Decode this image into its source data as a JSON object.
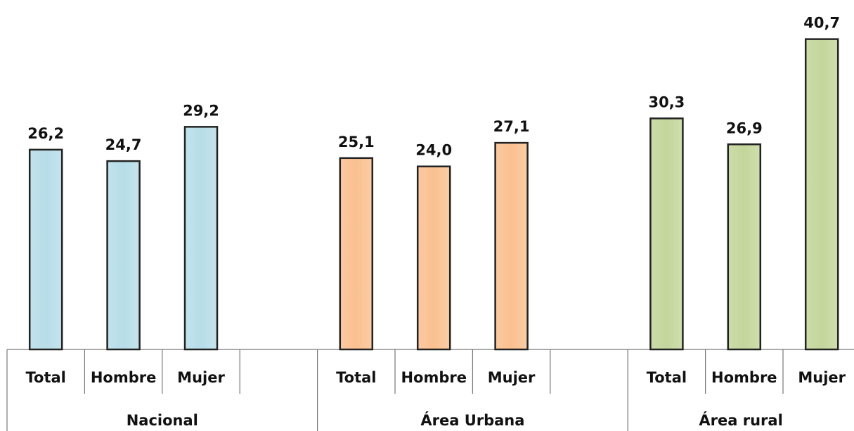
{
  "chart_data": {
    "type": "bar",
    "categories": [
      "Total",
      "Hombre",
      "Mujer",
      null,
      "Total",
      "Hombre",
      "Mujer",
      null,
      "Total",
      "Hombre",
      "Mujer"
    ],
    "values": [
      26.2,
      24.7,
      29.2,
      null,
      25.1,
      24.0,
      27.1,
      null,
      30.3,
      26.9,
      40.7
    ],
    "value_labels": [
      "26,2",
      "24,7",
      "29,2",
      null,
      "25,1",
      "24,0",
      "27,1",
      null,
      "30,3",
      "26,9",
      "40,7"
    ],
    "groups": [
      {
        "label": "Nacional",
        "color": "#b7dde8"
      },
      {
        "label": "Área Urbana",
        "color": "#fac090"
      },
      {
        "label": "Área rural",
        "color": "#c3d69b"
      }
    ],
    "ylim": [
      0,
      45
    ]
  }
}
